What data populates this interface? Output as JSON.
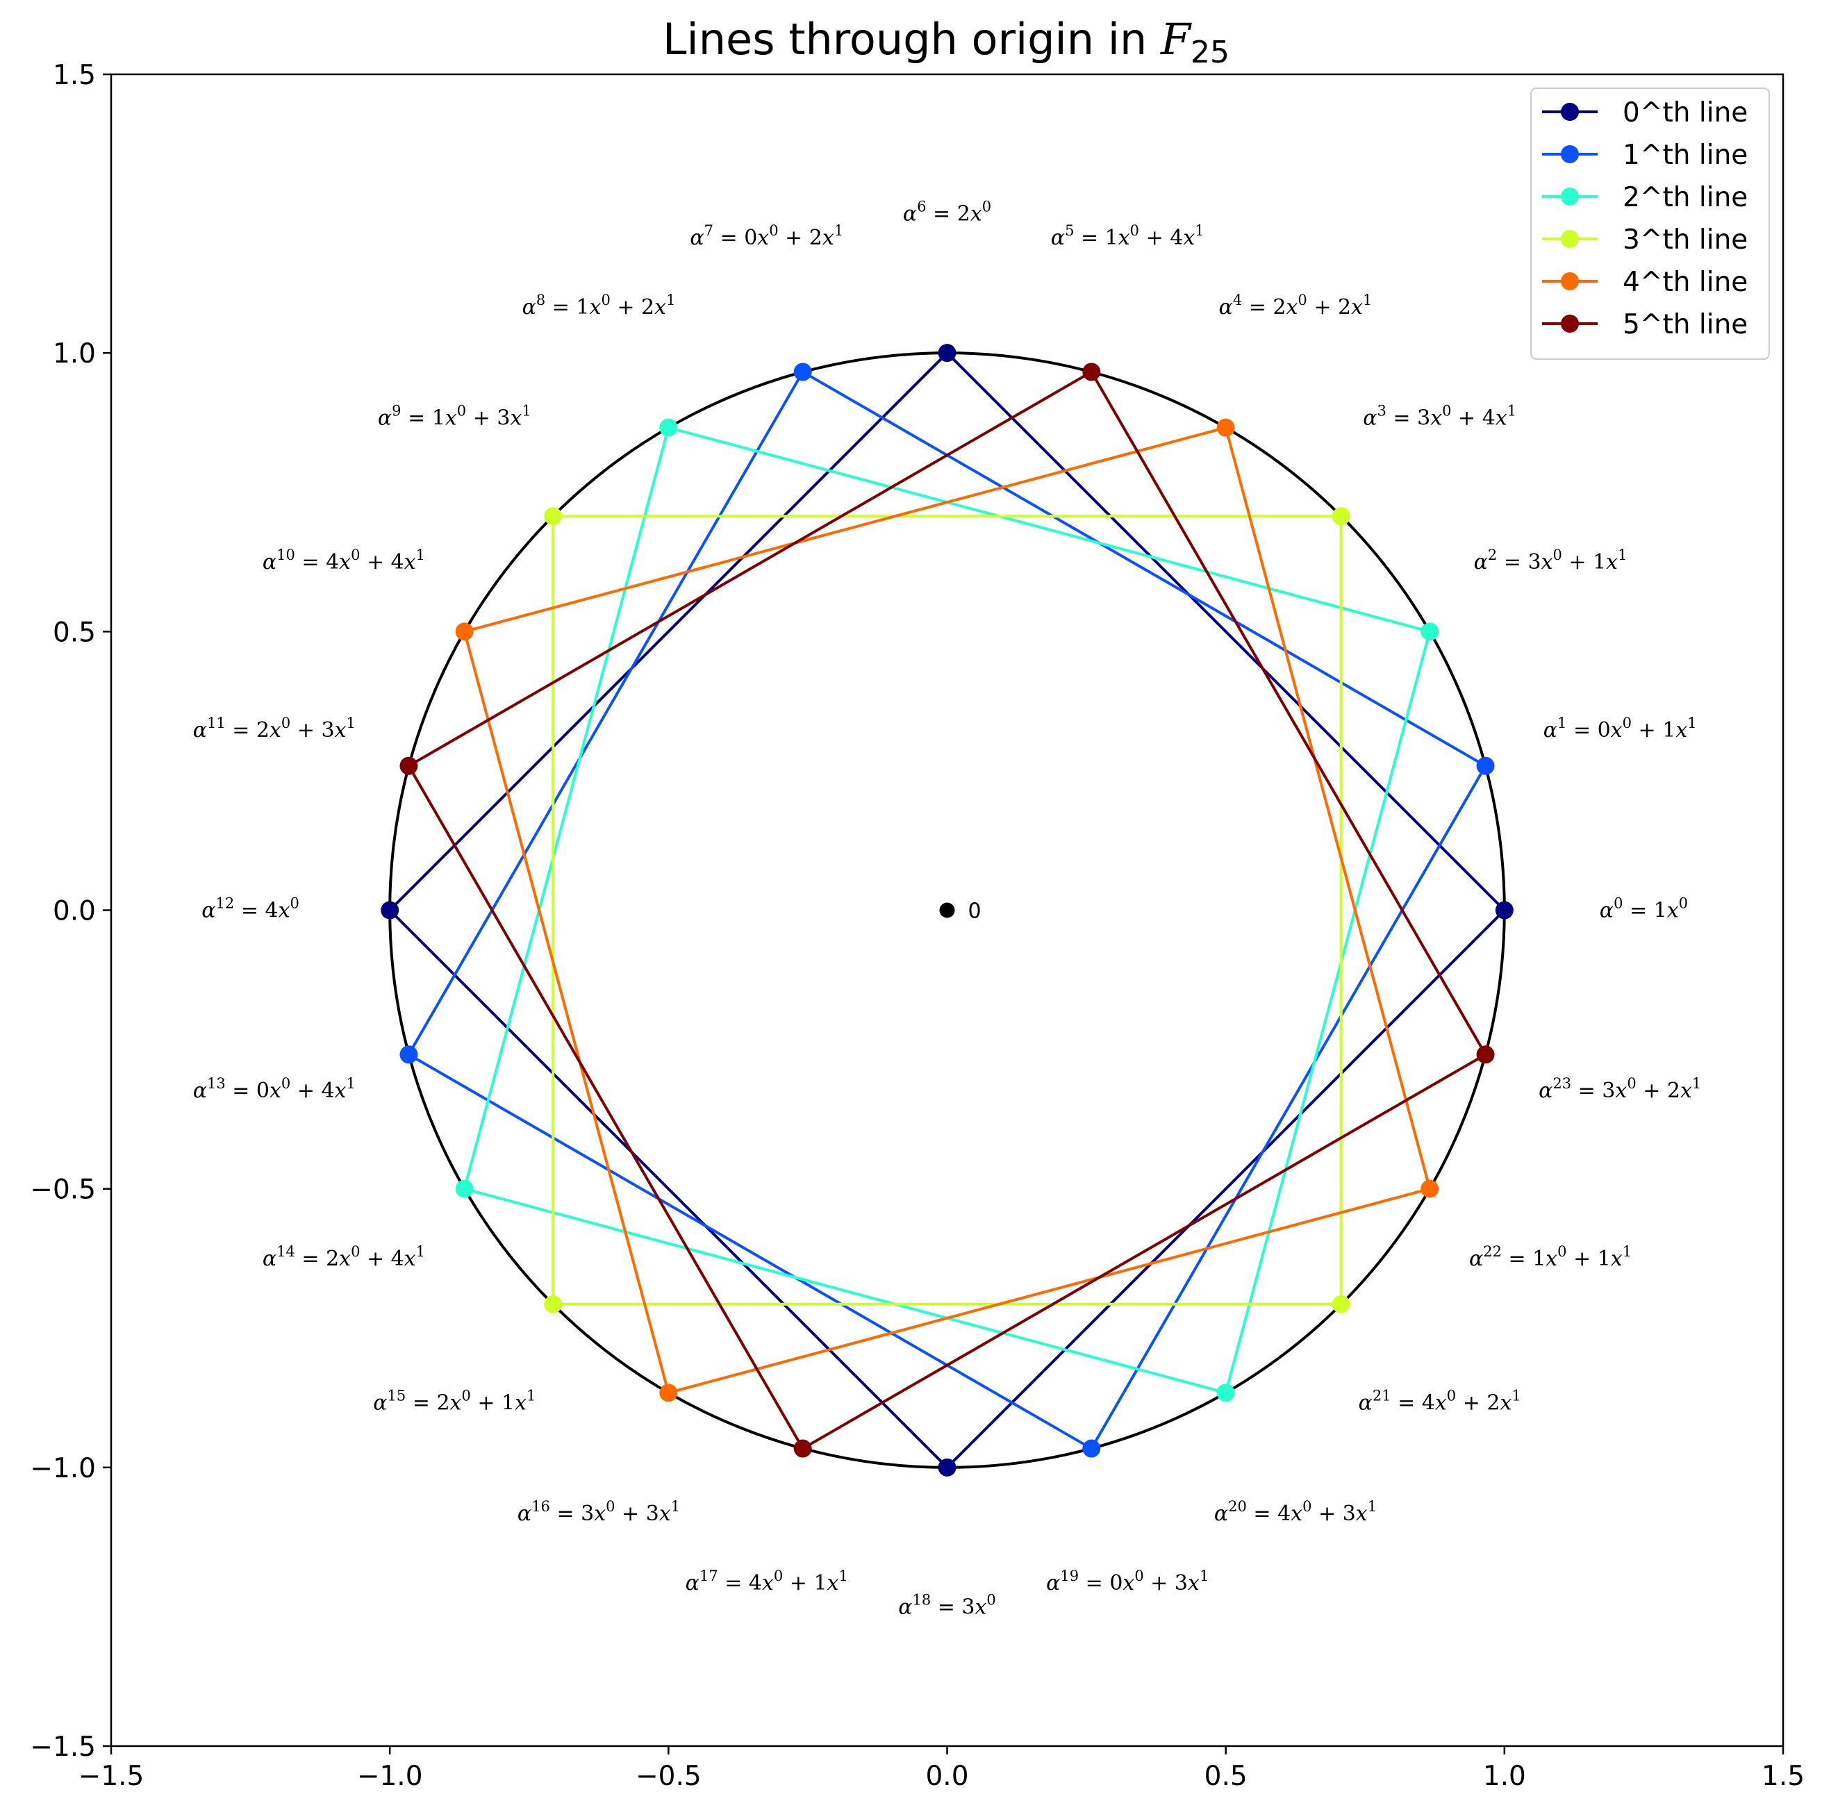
{
  "chart_data": {
    "type": "line",
    "title": "Lines through origin in ",
    "title_math": "F",
    "title_sub": "25",
    "xlim": [
      -1.5,
      1.5
    ],
    "ylim": [
      -1.5,
      1.5
    ],
    "xticks": [
      "−1.5",
      "−1.0",
      "−0.5",
      "0.0",
      "0.5",
      "1.0",
      "1.5"
    ],
    "yticks": [
      "1.5",
      "1.0",
      "0.5",
      "0.0",
      "−0.5",
      "−1.0",
      "−1.5"
    ],
    "grid": false,
    "legend_position": "top-right",
    "circle": {
      "radius": 1,
      "color": "#000000"
    },
    "origin_point": {
      "x": 0,
      "y": 0,
      "label": "0"
    },
    "series": [
      {
        "name": "0^th line",
        "color": "#000080",
        "powers": [
          0,
          6,
          12,
          18
        ]
      },
      {
        "name": "1^th line",
        "color": "#0a52ff",
        "powers": [
          1,
          7,
          13,
          19
        ]
      },
      {
        "name": "2^th line",
        "color": "#29ffce",
        "powers": [
          2,
          8,
          14,
          20
        ]
      },
      {
        "name": "3^th line",
        "color": "#ceff29",
        "powers": [
          3,
          9,
          15,
          21
        ]
      },
      {
        "name": "4^th line",
        "color": "#ff6a00",
        "powers": [
          4,
          10,
          16,
          22
        ]
      },
      {
        "name": "5^th line",
        "color": "#800000",
        "powers": [
          5,
          11,
          17,
          23
        ]
      }
    ],
    "points": [
      {
        "k": 0,
        "x": 1.0,
        "y": 0.0,
        "c0": "1",
        "c1": null
      },
      {
        "k": 1,
        "x": 0.966,
        "y": 0.259,
        "c0": "0",
        "c1": "1"
      },
      {
        "k": 2,
        "x": 0.866,
        "y": 0.5,
        "c0": "3",
        "c1": "1"
      },
      {
        "k": 3,
        "x": 0.707,
        "y": 0.707,
        "c0": "3",
        "c1": "4"
      },
      {
        "k": 4,
        "x": 0.5,
        "y": 0.866,
        "c0": "2",
        "c1": "2"
      },
      {
        "k": 5,
        "x": 0.259,
        "y": 0.966,
        "c0": "1",
        "c1": "4"
      },
      {
        "k": 6,
        "x": 0.0,
        "y": 1.0,
        "c0": "2",
        "c1": null
      },
      {
        "k": 7,
        "x": -0.259,
        "y": 0.966,
        "c0": "0",
        "c1": "2"
      },
      {
        "k": 8,
        "x": -0.5,
        "y": 0.866,
        "c0": "1",
        "c1": "2"
      },
      {
        "k": 9,
        "x": -0.707,
        "y": 0.707,
        "c0": "1",
        "c1": "3"
      },
      {
        "k": 10,
        "x": -0.866,
        "y": 0.5,
        "c0": "4",
        "c1": "4"
      },
      {
        "k": 11,
        "x": -0.966,
        "y": 0.259,
        "c0": "2",
        "c1": "3"
      },
      {
        "k": 12,
        "x": -1.0,
        "y": 0.0,
        "c0": "4",
        "c1": null
      },
      {
        "k": 13,
        "x": -0.966,
        "y": -0.259,
        "c0": "0",
        "c1": "4"
      },
      {
        "k": 14,
        "x": -0.866,
        "y": -0.5,
        "c0": "2",
        "c1": "4"
      },
      {
        "k": 15,
        "x": -0.707,
        "y": -0.707,
        "c0": "2",
        "c1": "1"
      },
      {
        "k": 16,
        "x": -0.5,
        "y": -0.866,
        "c0": "3",
        "c1": "3"
      },
      {
        "k": 17,
        "x": -0.259,
        "y": -0.966,
        "c0": "4",
        "c1": "1"
      },
      {
        "k": 18,
        "x": 0.0,
        "y": -1.0,
        "c0": "3",
        "c1": null
      },
      {
        "k": 19,
        "x": 0.259,
        "y": -0.966,
        "c0": "0",
        "c1": "3"
      },
      {
        "k": 20,
        "x": 0.5,
        "y": -0.866,
        "c0": "4",
        "c1": "3"
      },
      {
        "k": 21,
        "x": 0.707,
        "y": -0.707,
        "c0": "4",
        "c1": "2"
      },
      {
        "k": 22,
        "x": 0.866,
        "y": -0.5,
        "c0": "1",
        "c1": "1"
      },
      {
        "k": 23,
        "x": 0.966,
        "y": -0.259,
        "c0": "3",
        "c1": "2"
      }
    ]
  }
}
